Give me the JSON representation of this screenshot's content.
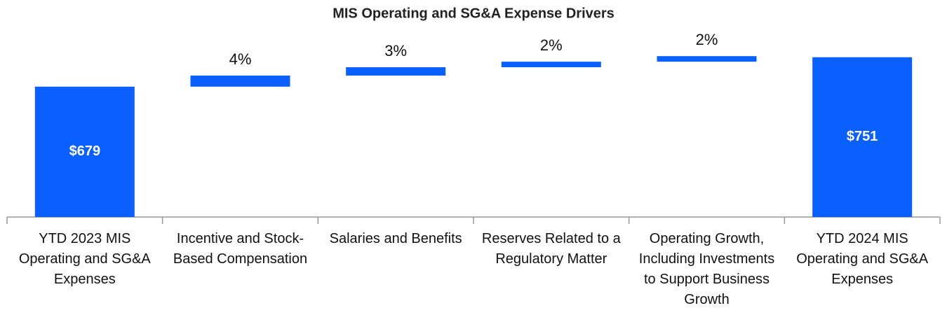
{
  "chart_data": {
    "type": "waterfall",
    "title": "MIS Operating and SG&A Expense Drivers",
    "categories": [
      "YTD 2023 MIS Operating and SG&A Expenses",
      "Incentive and Stock-Based Compensation",
      "Salaries and Benefits",
      "Reserves Related to a Regulatory Matter",
      "Operating Growth, Including Investments to Support Business Growth",
      "YTD 2024 MIS Operating and SG&A Expenses"
    ],
    "values": [
      679,
      4,
      3,
      2,
      2,
      751
    ],
    "value_labels": [
      "$679",
      "4%",
      "3%",
      "2%",
      "2%",
      "$751"
    ],
    "color": "#0a5fff",
    "ylim": [
      360,
      790
    ]
  }
}
